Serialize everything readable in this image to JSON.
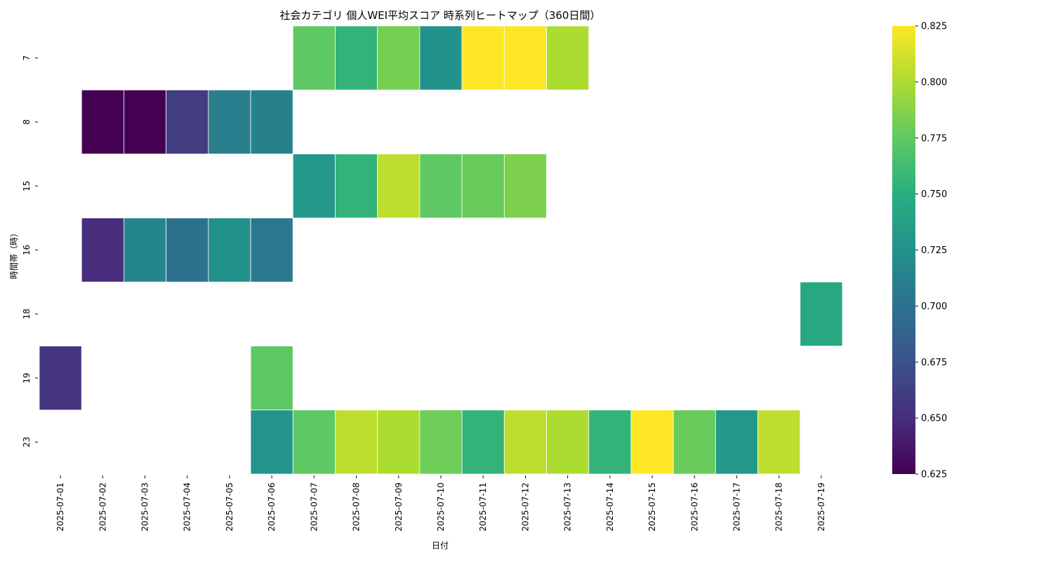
{
  "chart_data": {
    "type": "heatmap",
    "title": "社会カテゴリ 個人WEI平均スコア 時系列ヒートマップ（360日間）",
    "xlabel": "日付",
    "ylabel": "時間帯（時）",
    "x_categories": [
      "2025-07-01",
      "2025-07-02",
      "2025-07-03",
      "2025-07-04",
      "2025-07-05",
      "2025-07-06",
      "2025-07-07",
      "2025-07-08",
      "2025-07-09",
      "2025-07-10",
      "2025-07-11",
      "2025-07-12",
      "2025-07-13",
      "2025-07-14",
      "2025-07-15",
      "2025-07-16",
      "2025-07-17",
      "2025-07-18",
      "2025-07-19"
    ],
    "y_categories": [
      "7",
      "8",
      "15",
      "16",
      "18",
      "19",
      "23"
    ],
    "values": [
      [
        null,
        null,
        null,
        null,
        null,
        null,
        0.775,
        0.755,
        0.783,
        0.727,
        0.825,
        0.825,
        0.8,
        null,
        null,
        null,
        null,
        null,
        null
      ],
      [
        null,
        0.625,
        0.625,
        0.66,
        0.71,
        0.712,
        null,
        null,
        null,
        null,
        null,
        null,
        null,
        null,
        null,
        null,
        null,
        null,
        null
      ],
      [
        null,
        null,
        null,
        null,
        null,
        null,
        0.73,
        0.755,
        0.805,
        0.775,
        0.778,
        0.785,
        null,
        null,
        null,
        null,
        null,
        null,
        null
      ],
      [
        null,
        0.65,
        0.715,
        0.7,
        0.725,
        0.705,
        null,
        null,
        null,
        null,
        null,
        null,
        null,
        null,
        null,
        null,
        null,
        null,
        null
      ],
      [
        null,
        null,
        null,
        null,
        null,
        null,
        null,
        null,
        null,
        null,
        null,
        null,
        null,
        null,
        null,
        null,
        null,
        null,
        0.745
      ],
      [
        0.655,
        null,
        null,
        null,
        null,
        0.775,
        null,
        null,
        null,
        null,
        null,
        null,
        null,
        null,
        null,
        null,
        null,
        null,
        null
      ],
      [
        null,
        null,
        null,
        null,
        null,
        0.728,
        0.775,
        0.805,
        0.8,
        0.78,
        0.755,
        0.805,
        0.8,
        0.755,
        0.825,
        0.778,
        0.73,
        0.805,
        null
      ]
    ],
    "colormap": "viridis",
    "colorbar": {
      "vmin": 0.625,
      "vmax": 0.825,
      "ticks": [
        "0.625",
        "0.650",
        "0.675",
        "0.700",
        "0.725",
        "0.750",
        "0.775",
        "0.800",
        "0.825"
      ]
    },
    "cell_border_color": "#ffffff"
  }
}
